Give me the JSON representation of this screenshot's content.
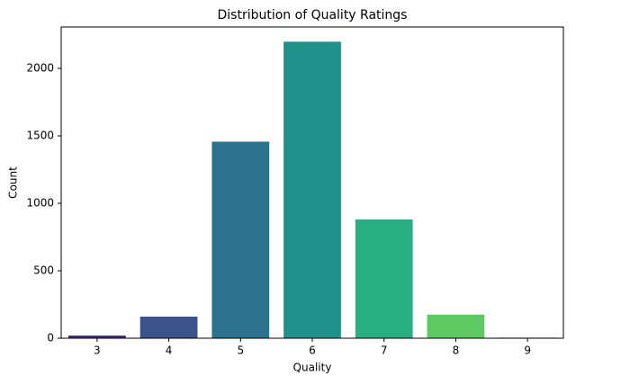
{
  "chart_data": {
    "type": "bar",
    "title": "Distribution of Quality Ratings",
    "x_label": "Quality",
    "y_label": "Count",
    "categories": [
      "3",
      "4",
      "5",
      "6",
      "7",
      "8",
      "9"
    ],
    "values": [
      20,
      160,
      1457,
      2198,
      880,
      175,
      5
    ],
    "colors": [
      "#472d7b",
      "#3b528b",
      "#2c728e",
      "#21918c",
      "#28ae80",
      "#5ec962",
      "#addc30"
    ],
    "ylim": [
      0,
      2307
    ],
    "yticks": [
      0,
      500,
      1000,
      1500,
      2000
    ],
    "grid": false
  }
}
